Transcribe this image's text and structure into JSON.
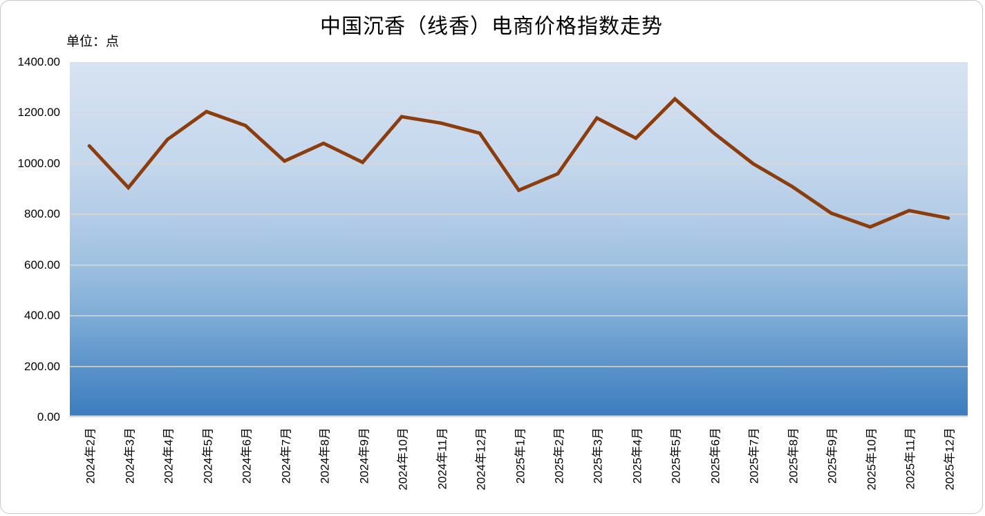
{
  "chart": {
    "title": "中国沉香（线香）电商价格指数走势",
    "unit_label": "单位：点"
  },
  "chart_data": {
    "type": "line",
    "title": "中国沉香（线香）电商价格指数走势",
    "unit": "单位：点",
    "categories": [
      "2024年2月",
      "2024年3月",
      "2024年4月",
      "2024年5月",
      "2024年6月",
      "2024年7月",
      "2024年8月",
      "2024年9月",
      "2024年10月",
      "2024年11月",
      "2024年12月",
      "2025年1月",
      "2025年2月",
      "2025年3月",
      "2025年4月",
      "2025年5月",
      "2025年6月",
      "2025年7月",
      "2025年8月",
      "2025年9月",
      "2025年10月",
      "2025年11月",
      "2025年12月"
    ],
    "values": [
      1070,
      905,
      1095,
      1205,
      1150,
      1010,
      1080,
      1005,
      1185,
      1160,
      1120,
      895,
      960,
      1180,
      1100,
      1255,
      1120,
      1000,
      910,
      805,
      750,
      815,
      785
    ],
    "ylim": [
      0,
      1400
    ],
    "ytick_interval": 200,
    "ytick_labels_top_to_bottom": [
      "1400.00",
      "1200.00",
      "1000.00",
      "800.00",
      "600.00",
      "400.00",
      "200.00",
      "0.00"
    ],
    "grid": true,
    "legend": "none",
    "line_color": "#8B3D0E",
    "line_width": 5,
    "grid_color": "#DBD8D1",
    "baseline_color": "#D9D9D9",
    "plot_bg_gradient_top_to_bottom": [
      "#D7E3F2",
      "#CEDDEF",
      "#C4D7EC",
      "#B4CCE7",
      "#9EC0E0",
      "#7EACD6",
      "#5B93C9",
      "#3B7CBF"
    ]
  }
}
